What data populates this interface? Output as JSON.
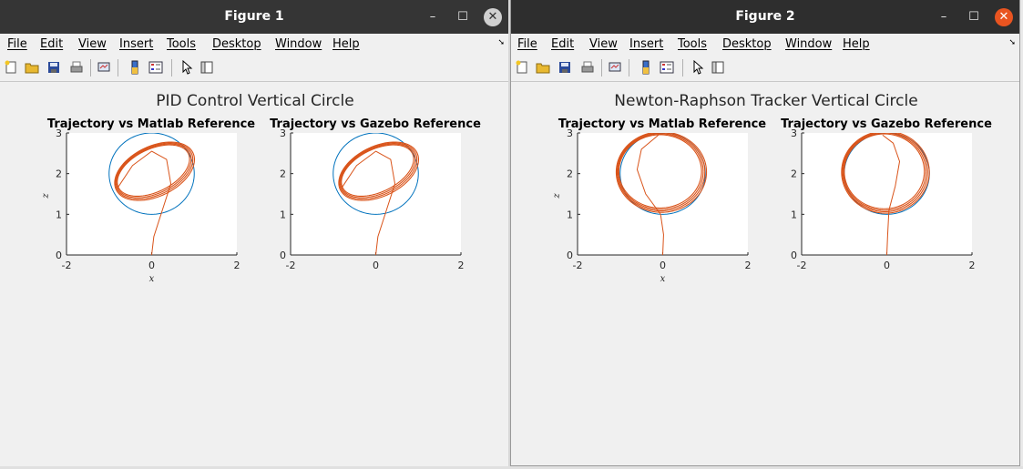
{
  "windows": [
    {
      "title": "Figure 1",
      "menu": [
        "File",
        "Edit",
        "View",
        "Insert",
        "Tools",
        "Desktop",
        "Window",
        "Help"
      ],
      "figure": {
        "suptitle": "PID Control Vertical Circle",
        "axes": [
          {
            "title": "Trajectory vs Matlab Reference",
            "xticks": [
              "-2",
              "0",
              "2"
            ],
            "yticks": [
              "0",
              "1",
              "2",
              "3"
            ],
            "xlabel": "x",
            "ylabel": "z"
          },
          {
            "title": "Trajectory vs Gazebo Reference",
            "xticks": [
              "-2",
              "0",
              "2"
            ],
            "yticks": [
              "0",
              "1",
              "2",
              "3"
            ],
            "xlabel": "",
            "ylabel": ""
          }
        ]
      }
    },
    {
      "title": "Figure 2",
      "menu": [
        "File",
        "Edit",
        "View",
        "Insert",
        "Tools",
        "Desktop",
        "Window",
        "Help"
      ],
      "figure": {
        "suptitle": "Newton-Raphson Tracker Vertical Circle",
        "axes": [
          {
            "title": "Trajectory vs Matlab Reference",
            "xticks": [
              "-2",
              "0",
              "2"
            ],
            "yticks": [
              "0",
              "1",
              "2",
              "3"
            ],
            "xlabel": "x",
            "ylabel": "z"
          },
          {
            "title": "Trajectory vs Gazebo Reference",
            "xticks": [
              "-2",
              "0",
              "2"
            ],
            "yticks": [
              "0",
              "1",
              "2",
              "3"
            ],
            "xlabel": "",
            "ylabel": ""
          }
        ]
      }
    }
  ],
  "chart_data": [
    {
      "type": "line",
      "title": "Trajectory vs Matlab Reference",
      "xlabel": "x",
      "ylabel": "z",
      "xlim": [
        -2,
        2
      ],
      "ylim": [
        0,
        3
      ],
      "series": [
        {
          "color": "#0072bd",
          "shape": "circle",
          "center": [
            0,
            2
          ],
          "radius": 1
        },
        {
          "color": "#d95319",
          "approach": [
            [
              0,
              0
            ],
            [
              0.05,
              0.45
            ],
            [
              0.25,
              1.1
            ],
            [
              0.45,
              1.75
            ],
            [
              0.35,
              2.35
            ],
            [
              0,
              2.55
            ],
            [
              -0.45,
              2.2
            ],
            [
              -0.8,
              1.65
            ]
          ],
          "orbit": {
            "center": [
              0.05,
              2.07
            ],
            "semi_axes": [
              0.95,
              0.55
            ],
            "tilt_deg": 28
          }
        }
      ]
    },
    {
      "type": "line",
      "title": "Trajectory vs Gazebo Reference",
      "xlim": [
        -2,
        2
      ],
      "ylim": [
        0,
        3
      ],
      "series": [
        {
          "color": "#0072bd",
          "shape": "circle",
          "center": [
            0,
            2
          ],
          "radius": 1
        },
        {
          "color": "#d95319",
          "approach": [
            [
              0,
              0
            ],
            [
              0.05,
              0.45
            ],
            [
              0.25,
              1.1
            ],
            [
              0.45,
              1.75
            ],
            [
              0.35,
              2.35
            ],
            [
              0,
              2.55
            ],
            [
              -0.45,
              2.2
            ],
            [
              -0.8,
              1.65
            ]
          ],
          "orbit": {
            "center": [
              0.05,
              2.07
            ],
            "semi_axes": [
              0.95,
              0.55
            ],
            "tilt_deg": 28
          }
        }
      ]
    },
    {
      "type": "line",
      "title": "Trajectory vs Matlab Reference",
      "xlabel": "x",
      "ylabel": "z",
      "xlim": [
        -2,
        2
      ],
      "ylim": [
        0,
        3
      ],
      "series": [
        {
          "color": "#0072bd",
          "shape": "circle",
          "center": [
            0,
            2
          ],
          "radius": 1
        },
        {
          "color": "#d95319",
          "approach": [
            [
              0,
              0
            ],
            [
              0.02,
              0.5
            ],
            [
              -0.05,
              1.0
            ],
            [
              -0.4,
              1.5
            ],
            [
              -0.6,
              2.1
            ],
            [
              -0.5,
              2.6
            ],
            [
              -0.1,
              2.95
            ]
          ],
          "orbit": {
            "center": [
              -0.05,
              2.05
            ],
            "semi_axes": [
              1.0,
              0.93
            ],
            "tilt_deg": 0
          }
        }
      ]
    },
    {
      "type": "line",
      "title": "Trajectory vs Gazebo Reference",
      "xlim": [
        -2,
        2
      ],
      "ylim": [
        0,
        3
      ],
      "series": [
        {
          "color": "#0072bd",
          "shape": "circle",
          "center": [
            0,
            2
          ],
          "radius": 1
        },
        {
          "color": "#d95319",
          "approach": [
            [
              0,
              0
            ],
            [
              0.02,
              0.5
            ],
            [
              0.05,
              1.1
            ],
            [
              0.2,
              1.7
            ],
            [
              0.3,
              2.3
            ],
            [
              0.15,
              2.75
            ],
            [
              -0.1,
              2.95
            ]
          ],
          "orbit": {
            "center": [
              -0.05,
              2.05
            ],
            "semi_axes": [
              0.97,
              0.95
            ],
            "tilt_deg": 0
          }
        }
      ]
    }
  ],
  "colors": {
    "reference": "#0072bd",
    "trajectory": "#d95319"
  }
}
